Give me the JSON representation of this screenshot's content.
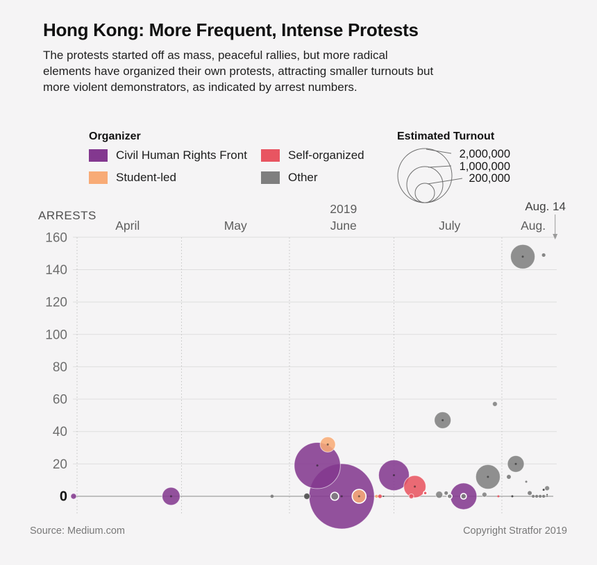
{
  "theme": {
    "background": "#f5f4f5",
    "grid_color": "#dedede",
    "zero_line_color": "#9f9f9f",
    "axis_text_color": "#5d5d5d"
  },
  "header": {
    "title": "Hong Kong: More Frequent, Intense Protests",
    "subtitle": "The protests started off as mass, peaceful rallies, but more radical elements have organized their own protests, attracting smaller turnouts but more violent demonstrators, as indicated by arrest numbers."
  },
  "legend": {
    "organizer": {
      "heading": "Organizer",
      "items": [
        {
          "label": "Civil Human Rights Front",
          "color": "#83388f"
        },
        {
          "label": "Self-organized",
          "color": "#e85561"
        },
        {
          "label": "Student-led",
          "color": "#f8ab76"
        },
        {
          "label": "Other",
          "color": "#7f7f7f"
        }
      ]
    },
    "turnout": {
      "heading": "Estimated Turnout",
      "labels": [
        "2,000,000",
        "1,000,000",
        "200,000"
      ],
      "values": [
        2000000,
        1000000,
        200000
      ]
    }
  },
  "chart_data": {
    "type": "scatter",
    "title": "Hong Kong: More Frequent, Intense Protests",
    "bubble_size_meaning": "estimated turnout",
    "y_axis": {
      "label": "ARRESTS",
      "ticks": [
        160,
        140,
        120,
        100,
        80,
        60,
        40,
        20,
        0
      ],
      "range": [
        0,
        160
      ]
    },
    "x_axis": {
      "year": "2019",
      "year_day": 76.5,
      "months": [
        {
          "label": "April",
          "day": 14.5
        },
        {
          "label": "May",
          "day": 45.5
        },
        {
          "label": "June",
          "day": 76.5
        },
        {
          "label": "July",
          "day": 107
        },
        {
          "label": "Aug.",
          "day": 131
        }
      ],
      "gridline_days": [
        0,
        30,
        61,
        91,
        122
      ]
    },
    "annotation": {
      "label": "Aug. 14",
      "text_day": 134.5,
      "arrow_day": 137.3
    },
    "palette": {
      "Civil Human Rights Front": "#83388f",
      "Student-led": "#f8ab76",
      "Self-organized": "#e85561",
      "Other": "#7f7f7f",
      "dark": "#474747"
    },
    "points": [
      {
        "date": "Mar 31",
        "arrests": 0,
        "turnout": 15000,
        "organizer": "Civil Human Rights Front"
      },
      {
        "date": "Apr 28",
        "arrests": 0,
        "turnout": 150000,
        "organizer": "Civil Human Rights Front"
      },
      {
        "date": "May 27",
        "arrests": 0,
        "turnout": 5000,
        "organizer": "Other"
      },
      {
        "date": "Jun 6",
        "arrests": 0,
        "turnout": 18000,
        "organizer": "Other",
        "dark": true
      },
      {
        "date": "Jun 9",
        "arrests": 19,
        "turnout": 1000000,
        "organizer": "Civil Human Rights Front"
      },
      {
        "date": "Jun 12",
        "arrests": 32,
        "turnout": 110000,
        "organizer": "Student-led"
      },
      {
        "date": "Jun 14",
        "arrests": 0,
        "turnout": 30000,
        "organizer": "Other",
        "ring": true
      },
      {
        "date": "Jun 16",
        "arrests": 0,
        "turnout": 2000000,
        "organizer": "Civil Human Rights Front"
      },
      {
        "date": "Jun 21",
        "arrests": 0,
        "turnout": 90000,
        "organizer": "Student-led",
        "ring": true
      },
      {
        "date": "Jun 26",
        "arrests": 0,
        "turnout": 4000,
        "organizer": "Student-led"
      },
      {
        "date": "Jun 27",
        "arrests": 0,
        "turnout": 6000,
        "organizer": "Self-organized"
      },
      {
        "date": "Jun 28",
        "arrests": 0,
        "turnout": 1000,
        "organizer": "Other",
        "dark": true
      },
      {
        "date": "Jul 1",
        "arrests": 13,
        "turnout": 440000,
        "organizer": "Civil Human Rights Front"
      },
      {
        "date": "Jul 6",
        "arrests": 0,
        "turnout": 11000,
        "organizer": "Self-organized"
      },
      {
        "date": "Jul 7",
        "arrests": 6,
        "turnout": 230000,
        "organizer": "Self-organized"
      },
      {
        "date": "Jul 10",
        "arrests": 2,
        "turnout": 6000,
        "organizer": "Self-organized",
        "ring": true
      },
      {
        "date": "Jul 14",
        "arrests": 1,
        "turnout": 23000,
        "organizer": "Other"
      },
      {
        "date": "Jul 15",
        "arrests": 47,
        "turnout": 130000,
        "organizer": "Other"
      },
      {
        "date": "Jul 16",
        "arrests": 2,
        "turnout": 6000,
        "organizer": "Other"
      },
      {
        "date": "Jul 17",
        "arrests": 0,
        "turnout": 11000,
        "organizer": "Other",
        "ring": true
      },
      {
        "date": "Jul 21",
        "arrests": 0,
        "turnout": 330000,
        "organizer": "Civil Human Rights Front"
      },
      {
        "date": "Jul 21",
        "arrests": 0,
        "turnout": 15000,
        "organizer": "Other",
        "ring": true
      },
      {
        "date": "Jul 27",
        "arrests": 1,
        "turnout": 11000,
        "organizer": "Other"
      },
      {
        "date": "Jul 28",
        "arrests": 12,
        "turnout": 280000,
        "organizer": "Other"
      },
      {
        "date": "Jul 30",
        "arrests": 57,
        "turnout": 11000,
        "organizer": "Other"
      },
      {
        "date": "Jul 31",
        "arrests": 0,
        "turnout": 2000,
        "organizer": "Self-organized"
      },
      {
        "date": "Aug 3",
        "arrests": 12,
        "turnout": 8000,
        "organizer": "Other"
      },
      {
        "date": "Aug 4",
        "arrests": 0,
        "turnout": 2000,
        "organizer": "Other",
        "dark": true
      },
      {
        "date": "Aug 5",
        "arrests": 20,
        "turnout": 130000,
        "organizer": "Other"
      },
      {
        "date": "Aug 7",
        "arrests": 148,
        "turnout": 280000,
        "organizer": "Other"
      },
      {
        "date": "Aug 8",
        "arrests": 9,
        "turnout": 2000,
        "organizer": "Other"
      },
      {
        "date": "Aug 9",
        "arrests": 2,
        "turnout": 8000,
        "organizer": "Other"
      },
      {
        "date": "Aug 10",
        "arrests": 0,
        "turnout": 4000,
        "organizer": "Other"
      },
      {
        "date": "Aug 11",
        "arrests": 0,
        "turnout": 4000,
        "organizer": "Other"
      },
      {
        "date": "Aug 12",
        "arrests": 0,
        "turnout": 4000,
        "organizer": "Other"
      },
      {
        "date": "Aug 13",
        "arrests": 0,
        "turnout": 4000,
        "organizer": "Other"
      },
      {
        "date": "Aug 13",
        "arrests": 4,
        "turnout": 2000,
        "organizer": "Other",
        "dark": true
      },
      {
        "date": "Aug 13",
        "arrests": 149,
        "turnout": 6000,
        "organizer": "Other"
      },
      {
        "date": "Aug 14",
        "arrests": 1,
        "turnout": 1000,
        "organizer": "Other",
        "dark": true
      },
      {
        "date": "Aug 14",
        "arrests": 5,
        "turnout": 11000,
        "organizer": "Other"
      },
      {
        "date": "Aug 14",
        "arrests": 0,
        "turnout": 1000,
        "organizer": "Other"
      }
    ]
  },
  "footer": {
    "source": "Source: Medium.com",
    "copyright": "Copyright Stratfor 2019"
  }
}
